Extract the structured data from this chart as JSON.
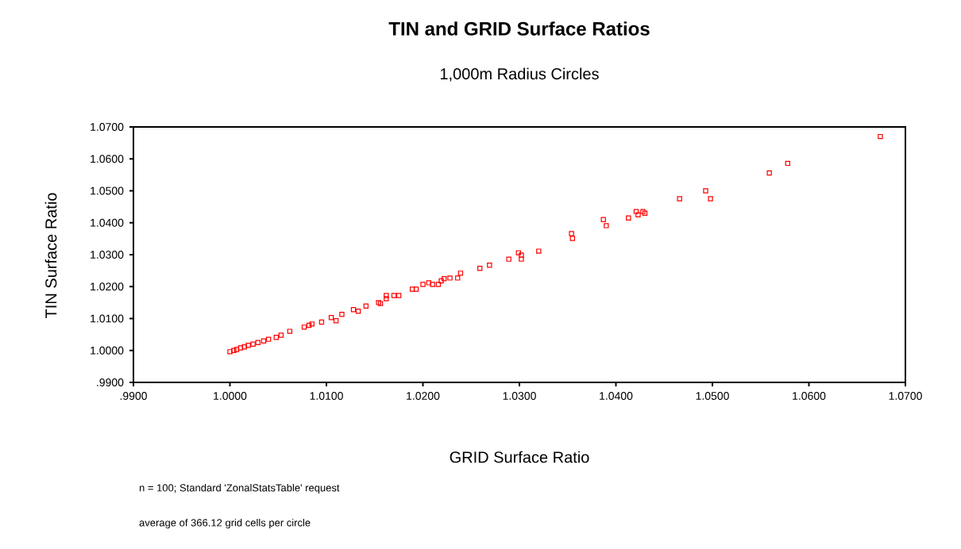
{
  "chart_data": {
    "type": "scatter",
    "title": "TIN and GRID Surface Ratios",
    "subtitle": "1,000m Radius Circles",
    "xlabel": "GRID Surface Ratio",
    "ylabel": "TIN Surface Ratio",
    "annotations": [
      "n = 100;    Standard 'ZonalStatsTable' request",
      "average of 366.12 grid cells per circle"
    ],
    "xlim": [
      0.99,
      1.07
    ],
    "ylim": [
      0.99,
      1.07
    ],
    "xticks": [
      {
        "value": 0.99,
        "label": ".9900"
      },
      {
        "value": 1.0,
        "label": "1.0000"
      },
      {
        "value": 1.01,
        "label": "1.0100"
      },
      {
        "value": 1.02,
        "label": "1.0200"
      },
      {
        "value": 1.03,
        "label": "1.0300"
      },
      {
        "value": 1.04,
        "label": "1.0400"
      },
      {
        "value": 1.05,
        "label": "1.0500"
      },
      {
        "value": 1.06,
        "label": "1.0600"
      },
      {
        "value": 1.07,
        "label": "1.0700"
      }
    ],
    "yticks": [
      {
        "value": 0.99,
        "label": ".9900"
      },
      {
        "value": 1.0,
        "label": "1.0000"
      },
      {
        "value": 1.01,
        "label": "1.0100"
      },
      {
        "value": 1.02,
        "label": "1.0200"
      },
      {
        "value": 1.03,
        "label": "1.0300"
      },
      {
        "value": 1.04,
        "label": "1.0400"
      },
      {
        "value": 1.05,
        "label": "1.0500"
      },
      {
        "value": 1.06,
        "label": "1.0600"
      },
      {
        "value": 1.07,
        "label": "1.0700"
      }
    ],
    "marker": "square",
    "series": [
      {
        "color": "#ff0000",
        "x": [
          1.0,
          1.0004,
          1.0007,
          1.0011,
          1.0015,
          1.0019,
          1.0024,
          1.0029,
          1.0035,
          1.004,
          1.0048,
          1.0053,
          1.0062,
          1.0077,
          1.0082,
          1.0085,
          1.0095,
          1.0105,
          1.011,
          1.0116,
          1.0128,
          1.0133,
          1.0141,
          1.0154,
          1.0156,
          1.0162,
          1.0162,
          1.017,
          1.0175,
          1.0189,
          1.0193,
          1.02,
          1.0206,
          1.021,
          1.0216,
          1.0219,
          1.0222,
          1.0228,
          1.0236,
          1.0239,
          1.0259,
          1.0269,
          1.0289,
          1.0299,
          1.0302,
          1.0302,
          1.032,
          1.0354,
          1.0355,
          1.0387,
          1.039,
          1.0413,
          1.0421,
          1.0423,
          1.0428,
          1.043,
          1.0466,
          1.0493,
          1.0498,
          1.0559,
          1.0578,
          1.0674
        ],
        "values": [
          0.9996,
          1.0,
          1.0003,
          1.0008,
          1.0011,
          1.0016,
          1.002,
          1.0025,
          1.003,
          1.0035,
          1.0041,
          1.0048,
          1.006,
          1.0073,
          1.0079,
          1.0083,
          1.0089,
          1.0103,
          1.0093,
          1.0113,
          1.0128,
          1.0123,
          1.0139,
          1.015,
          1.0147,
          1.0162,
          1.0172,
          1.0172,
          1.0172,
          1.0192,
          1.0192,
          1.0207,
          1.0212,
          1.0207,
          1.0207,
          1.0218,
          1.0225,
          1.0227,
          1.0227,
          1.0242,
          1.0257,
          1.0267,
          1.0286,
          1.0306,
          1.0299,
          1.0286,
          1.0311,
          1.0366,
          1.0351,
          1.041,
          1.0391,
          1.0415,
          1.0435,
          1.0425,
          1.0435,
          1.043,
          1.0475,
          1.05,
          1.0475,
          1.0556,
          1.0586,
          1.067
        ]
      }
    ]
  }
}
